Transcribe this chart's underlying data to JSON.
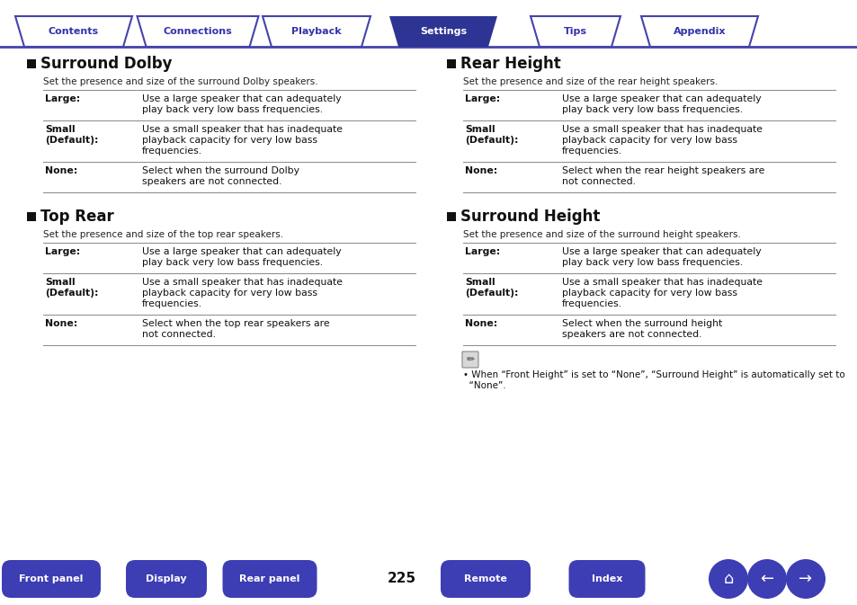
{
  "tab_labels": [
    "Contents",
    "Connections",
    "Playback",
    "Settings",
    "Tips",
    "Appendix"
  ],
  "active_tab": 3,
  "tab_color_active": "#2d3494",
  "tab_color_inactive": "#ffffff",
  "tab_border_color": "#4444aa",
  "tab_text_active": "#ffffff",
  "tab_text_inactive": "#3333aa",
  "page_number": "225",
  "bg_color": "#ffffff",
  "left_sections": [
    {
      "title": "Surround Dolby",
      "subtitle": "Set the presence and size of the surround Dolby speakers.",
      "rows": [
        {
          "label": "Large:",
          "desc": "Use a large speaker that can adequately\nplay back very low bass frequencies."
        },
        {
          "label": "Small\n(Default):",
          "desc": "Use a small speaker that has inadequate\nplayback capacity for very low bass\nfrequencies."
        },
        {
          "label": "None:",
          "desc": "Select when the surround Dolby\nspeakers are not connected."
        }
      ]
    },
    {
      "title": "Top Rear",
      "subtitle": "Set the presence and size of the top rear speakers.",
      "rows": [
        {
          "label": "Large:",
          "desc": "Use a large speaker that can adequately\nplay back very low bass frequencies."
        },
        {
          "label": "Small\n(Default):",
          "desc": "Use a small speaker that has inadequate\nplayback capacity for very low bass\nfrequencies."
        },
        {
          "label": "None:",
          "desc": "Select when the top rear speakers are\nnot connected."
        }
      ]
    }
  ],
  "right_sections": [
    {
      "title": "Rear Height",
      "subtitle": "Set the presence and size of the rear height speakers.",
      "rows": [
        {
          "label": "Large:",
          "desc": "Use a large speaker that can adequately\nplay back very low bass frequencies."
        },
        {
          "label": "Small\n(Default):",
          "desc": "Use a small speaker that has inadequate\nplayback capacity for very low bass\nfrequencies."
        },
        {
          "label": "None:",
          "desc": "Select when the rear height speakers are\nnot connected."
        }
      ]
    },
    {
      "title": "Surround Height",
      "subtitle": "Set the presence and size of the surround height speakers.",
      "rows": [
        {
          "label": "Large:",
          "desc": "Use a large speaker that can adequately\nplay back very low bass frequencies."
        },
        {
          "label": "Small\n(Default):",
          "desc": "Use a small speaker that has inadequate\nplayback capacity for very low bass\nfrequencies."
        },
        {
          "label": "None:",
          "desc": "Select when the surround height\nspeakers are not connected."
        }
      ]
    }
  ],
  "note_line1": "• When “Front Height” is set to “None”, “Surround Height” is automatically set to",
  "note_line2": "  “None”.",
  "bottom_buttons": [
    "Front panel",
    "Display",
    "Rear panel",
    "Remote",
    "Index"
  ],
  "button_color": "#3d3db4",
  "button_text_color": "#ffffff",
  "header_line_color": "#4444aa"
}
